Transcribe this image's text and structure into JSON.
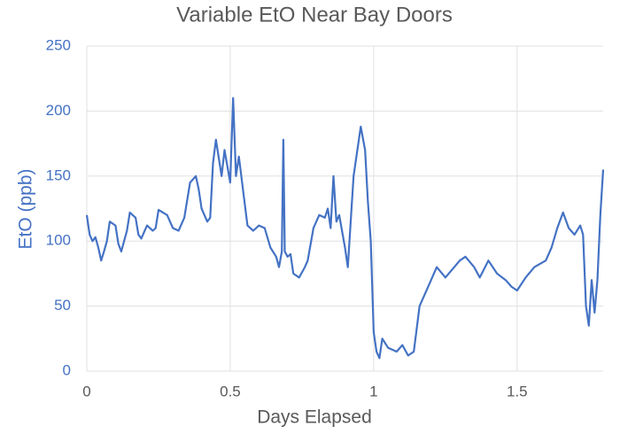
{
  "chart_data": {
    "type": "line",
    "title": "Variable EtO Near Bay Doors",
    "x_label": "Days Elapsed",
    "y_label": "EtO (ppb)",
    "x": [
      0,
      0.01,
      0.02,
      0.03,
      0.04,
      0.05,
      0.06,
      0.07,
      0.08,
      0.1,
      0.11,
      0.12,
      0.14,
      0.15,
      0.17,
      0.18,
      0.19,
      0.21,
      0.23,
      0.24,
      0.25,
      0.28,
      0.3,
      0.32,
      0.34,
      0.36,
      0.38,
      0.39,
      0.4,
      0.42,
      0.43,
      0.44,
      0.45,
      0.47,
      0.48,
      0.5,
      0.51,
      0.52,
      0.53,
      0.55,
      0.56,
      0.58,
      0.6,
      0.62,
      0.64,
      0.66,
      0.67,
      0.68,
      0.685,
      0.69,
      0.7,
      0.71,
      0.72,
      0.74,
      0.76,
      0.77,
      0.79,
      0.81,
      0.83,
      0.84,
      0.85,
      0.86,
      0.87,
      0.88,
      0.9,
      0.91,
      0.93,
      0.955,
      0.97,
      0.98,
      0.99,
      1.0,
      1.01,
      1.02,
      1.03,
      1.05,
      1.08,
      1.1,
      1.12,
      1.14,
      1.16,
      1.18,
      1.2,
      1.22,
      1.25,
      1.3,
      1.32,
      1.35,
      1.37,
      1.4,
      1.43,
      1.46,
      1.48,
      1.5,
      1.53,
      1.56,
      1.6,
      1.62,
      1.64,
      1.66,
      1.68,
      1.7,
      1.72,
      1.73,
      1.74,
      1.75,
      1.76,
      1.77,
      1.78,
      1.79,
      1.8
    ],
    "series": [
      {
        "name": "EtO",
        "color": "#4472c4",
        "values": [
          120,
          105,
          100,
          103,
          95,
          85,
          92,
          100,
          115,
          112,
          98,
          92,
          108,
          122,
          118,
          105,
          102,
          112,
          108,
          110,
          124,
          120,
          110,
          108,
          118,
          145,
          150,
          140,
          125,
          115,
          118,
          160,
          178,
          150,
          170,
          145,
          210,
          150,
          165,
          130,
          112,
          108,
          112,
          110,
          95,
          88,
          80,
          92,
          178,
          92,
          88,
          90,
          75,
          72,
          80,
          85,
          110,
          120,
          118,
          125,
          110,
          150,
          115,
          120,
          95,
          80,
          150,
          188,
          170,
          130,
          100,
          30,
          15,
          10,
          25,
          18,
          15,
          20,
          12,
          15,
          50,
          60,
          70,
          80,
          72,
          85,
          88,
          80,
          72,
          85,
          75,
          70,
          65,
          62,
          72,
          80,
          85,
          95,
          110,
          122,
          110,
          105,
          112,
          105,
          50,
          35,
          70,
          45,
          70,
          120,
          155
        ]
      }
    ],
    "xlim": [
      0,
      1.8
    ],
    "ylim": [
      0,
      250
    ],
    "xticks": [
      0,
      0.5,
      1,
      1.5
    ],
    "yticks": [
      0,
      50,
      100,
      150,
      200,
      250
    ],
    "grid": true
  }
}
